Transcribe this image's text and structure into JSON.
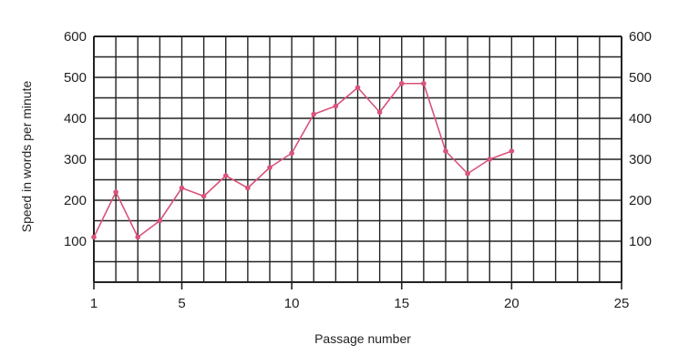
{
  "chart_data": {
    "type": "line",
    "title": "",
    "xlabel": "Passage number",
    "ylabel": "Speed in words per minute",
    "xlim": [
      1,
      25
    ],
    "ylim": [
      0,
      600
    ],
    "x_ticks": [
      "1",
      "5",
      "10",
      "15",
      "20",
      "25"
    ],
    "y_ticks": [
      "100",
      "200",
      "300",
      "400",
      "500",
      "600"
    ],
    "grid": true,
    "legend": "none",
    "series": [
      {
        "x": [
          1,
          2,
          3,
          4,
          5,
          6,
          7,
          8,
          9,
          10,
          11,
          12,
          13,
          14,
          15,
          16,
          17,
          18,
          19,
          20
        ],
        "y": [
          110,
          220,
          110,
          150,
          230,
          210,
          260,
          230,
          280,
          315,
          410,
          430,
          475,
          415,
          485,
          485,
          320,
          265,
          300,
          320
        ],
        "color": "#d9537a"
      }
    ],
    "grid_color": "#222222"
  }
}
